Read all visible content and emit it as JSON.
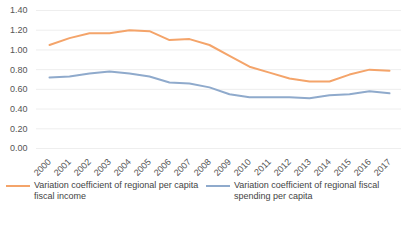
{
  "chart_data": {
    "type": "line",
    "categories": [
      "2000",
      "2001",
      "2002",
      "2003",
      "2004",
      "2005",
      "2006",
      "2007",
      "2008",
      "2009",
      "2010",
      "2011",
      "2012",
      "2013",
      "2014",
      "2015",
      "2016",
      "2017"
    ],
    "series": [
      {
        "name": "Variation coefficient of regional per capita fiscal income",
        "color": "#f4a46a",
        "values": [
          1.05,
          1.12,
          1.17,
          1.17,
          1.2,
          1.19,
          1.1,
          1.11,
          1.05,
          0.94,
          0.83,
          0.77,
          0.71,
          0.68,
          0.68,
          0.75,
          0.8,
          0.79
        ]
      },
      {
        "name": "Variation coefficient of regional fiscal spending per capita",
        "color": "#8faacc",
        "values": [
          0.72,
          0.73,
          0.76,
          0.78,
          0.76,
          0.73,
          0.67,
          0.66,
          0.62,
          0.55,
          0.52,
          0.52,
          0.52,
          0.51,
          0.54,
          0.55,
          0.58,
          0.56
        ]
      }
    ],
    "ylim": [
      0,
      1.4
    ],
    "yticks": [
      {
        "value": 0,
        "label": "0.00"
      },
      {
        "value": 0.2,
        "label": "0.20"
      },
      {
        "value": 0.4,
        "label": "0.40"
      },
      {
        "value": 0.6,
        "label": "0.60"
      },
      {
        "value": 0.8,
        "label": "0.80"
      },
      {
        "value": 1.0,
        "label": "1.00"
      },
      {
        "value": 1.2,
        "label": "1.20"
      },
      {
        "value": 1.4,
        "label": "1.40"
      }
    ],
    "grid": true,
    "legend": "bottom"
  }
}
